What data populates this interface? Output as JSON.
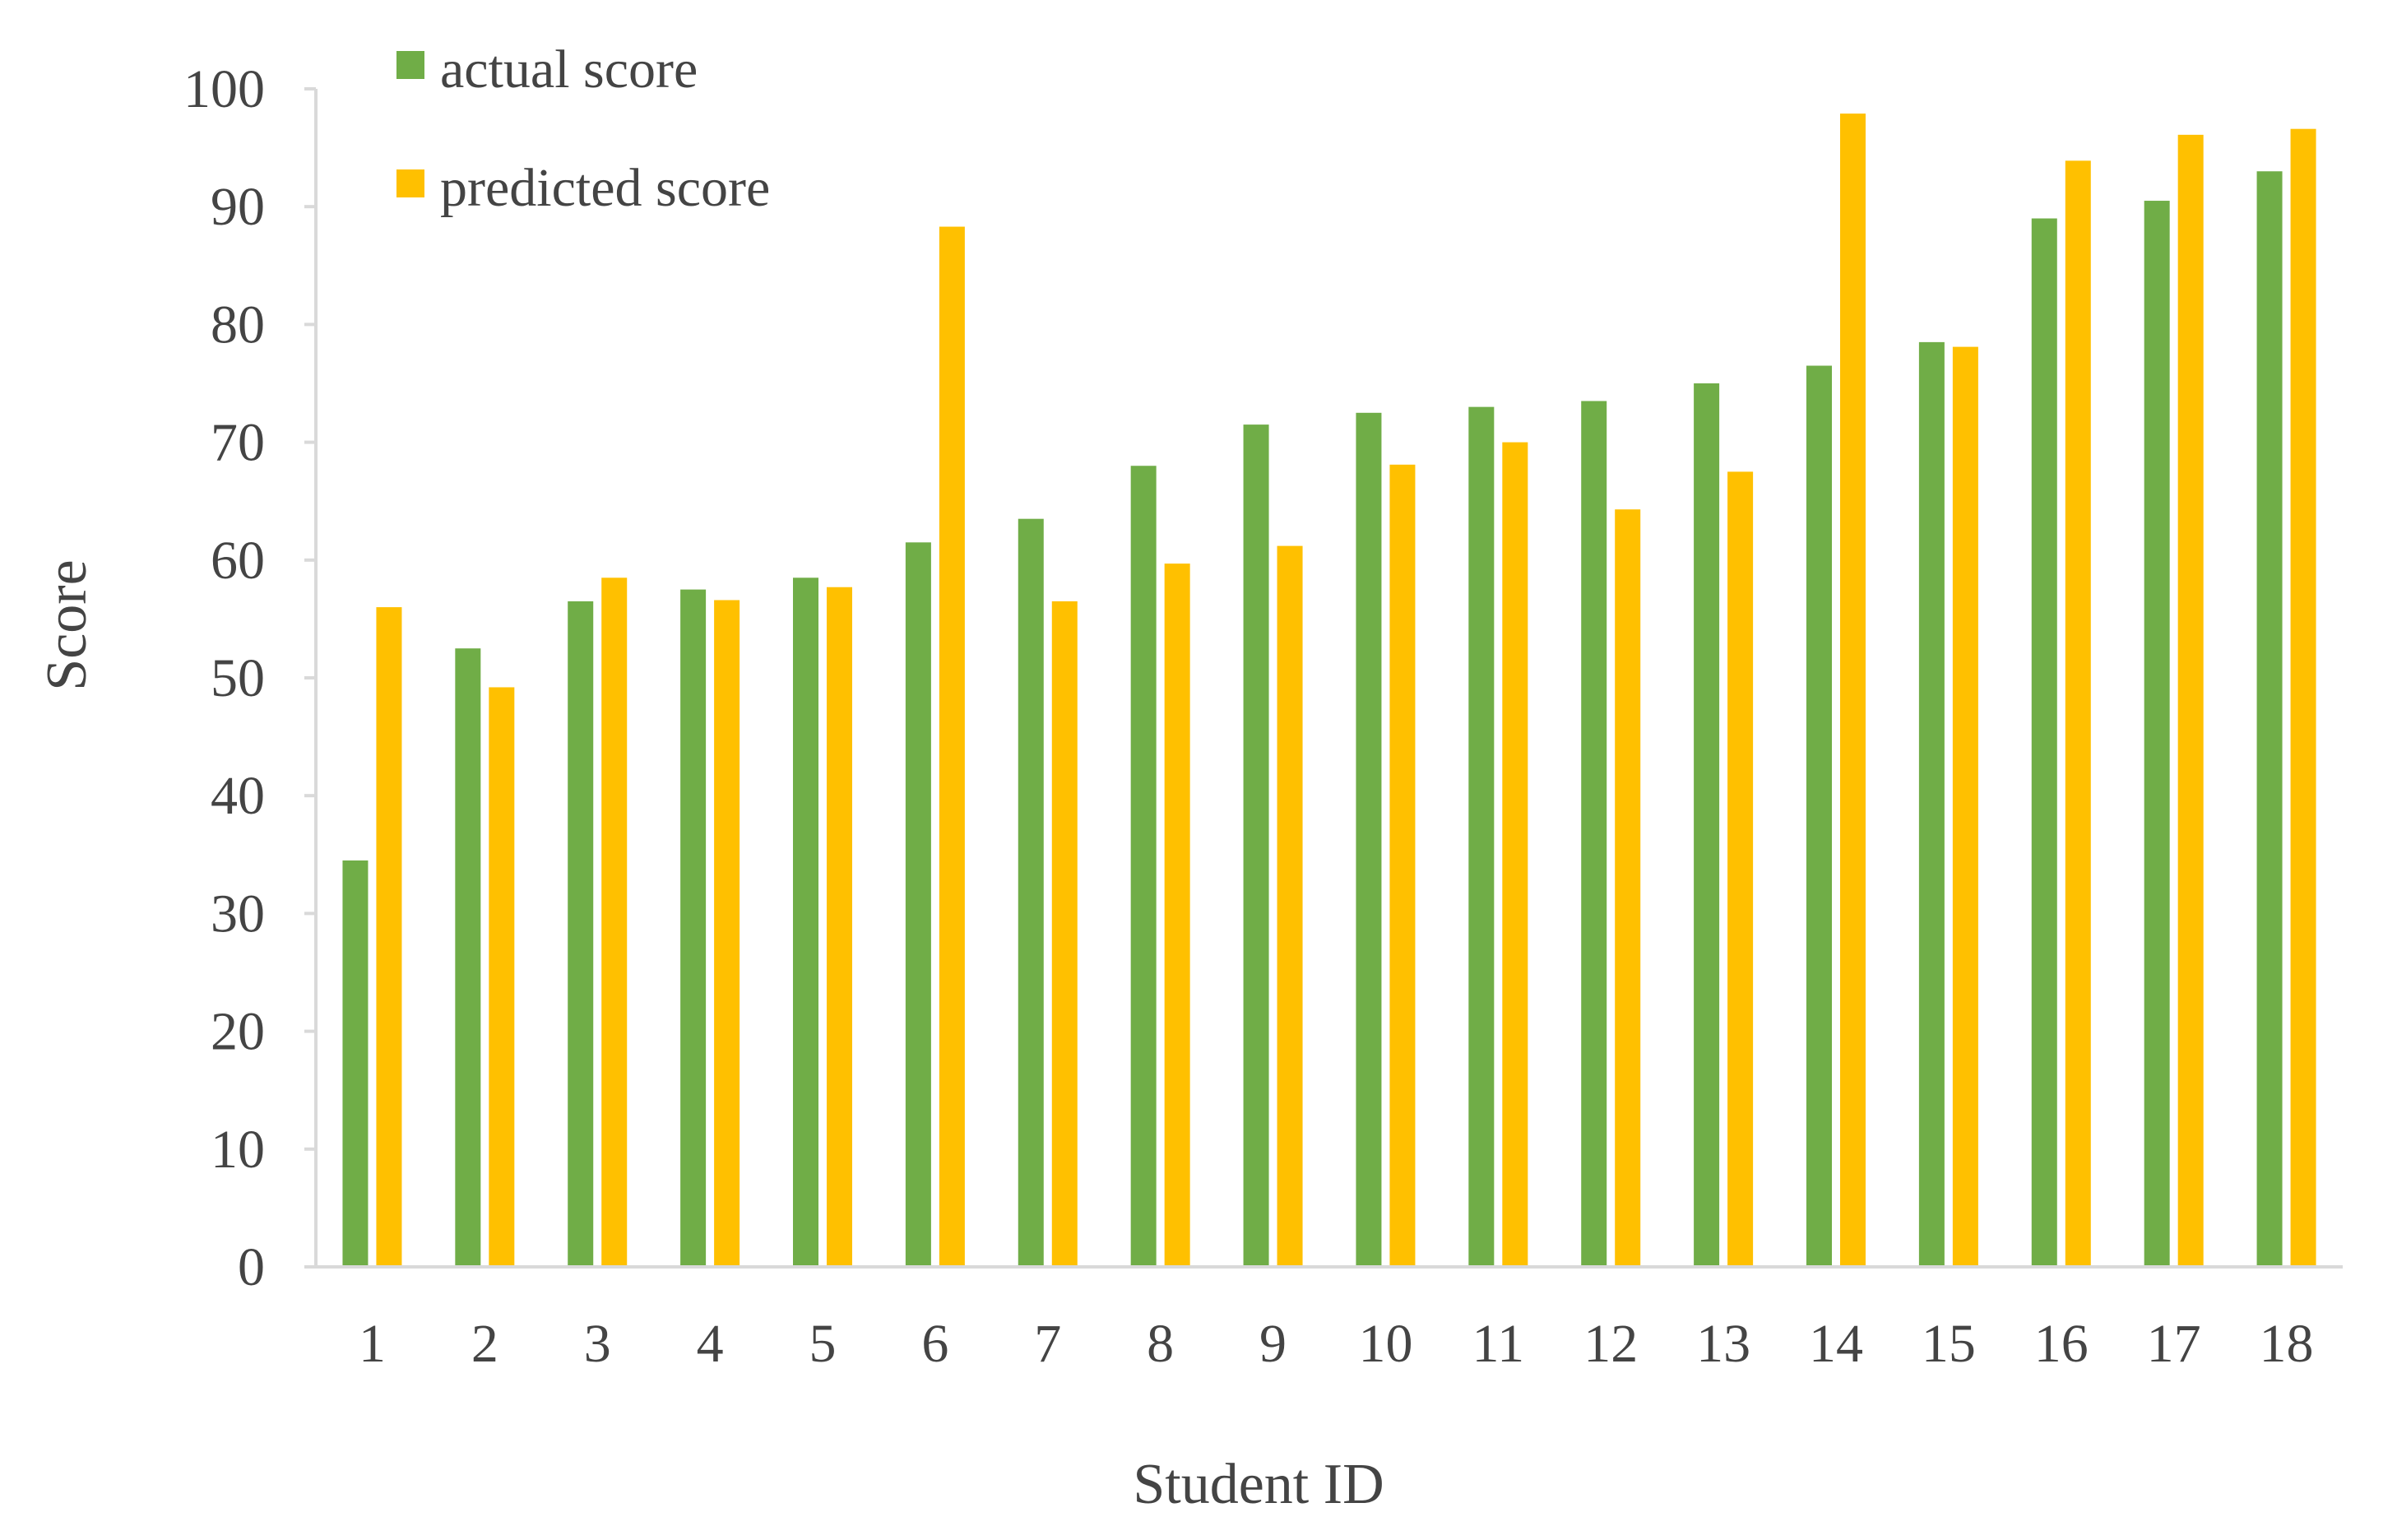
{
  "chart_data": {
    "type": "bar",
    "title": "",
    "xlabel": "Student ID",
    "ylabel": "Score",
    "ylim": [
      0,
      100
    ],
    "yticks": [
      0,
      10,
      20,
      30,
      40,
      50,
      60,
      70,
      80,
      90,
      100
    ],
    "categories": [
      "1",
      "2",
      "3",
      "4",
      "5",
      "6",
      "7",
      "8",
      "9",
      "10",
      "11",
      "12",
      "13",
      "14",
      "15",
      "16",
      "17",
      "18"
    ],
    "series": [
      {
        "name": "actual score",
        "color": "#70AD47",
        "values": [
          34.5,
          52.5,
          56.5,
          57.5,
          58.5,
          61.5,
          63.5,
          68,
          71.5,
          72.5,
          73,
          73.5,
          75,
          76.5,
          78.5,
          89,
          90.5,
          93
        ]
      },
      {
        "name": "predicted score",
        "color": "#FFC000",
        "values": [
          56,
          49.2,
          58.5,
          56.6,
          57.7,
          88.3,
          56.5,
          59.7,
          61.2,
          68.1,
          70,
          64.3,
          67.5,
          97.9,
          78.1,
          93.9,
          96.1,
          96.6
        ]
      }
    ],
    "grid": false,
    "legend_position": "top-left"
  }
}
